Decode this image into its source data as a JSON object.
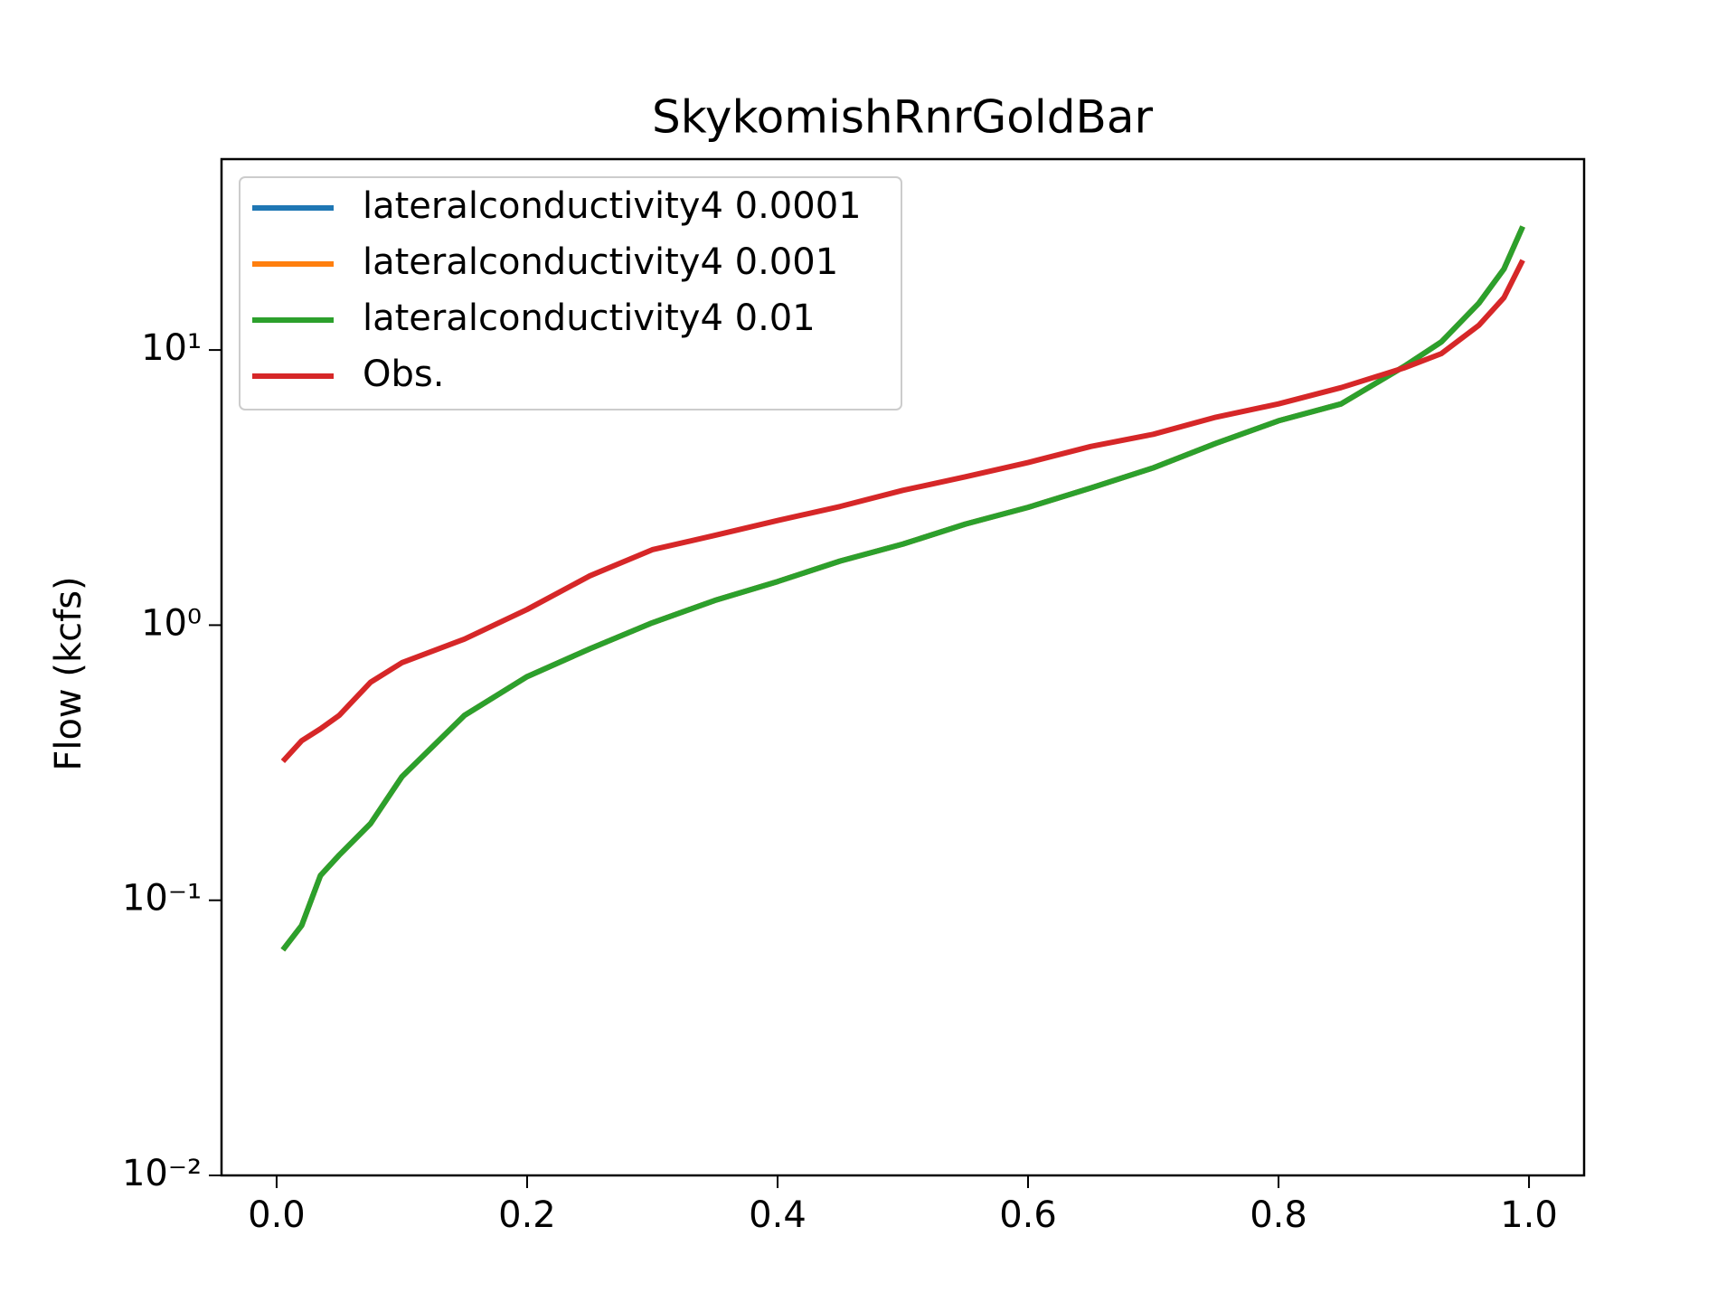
{
  "chart_data": {
    "type": "line",
    "title": "SkykomishRnrGoldBar",
    "ylabel": "Flow (kcfs)",
    "x": [
      0.005,
      0.02,
      0.035,
      0.05,
      0.075,
      0.1,
      0.15,
      0.2,
      0.25,
      0.3,
      0.35,
      0.4,
      0.45,
      0.5,
      0.55,
      0.6,
      0.65,
      0.7,
      0.75,
      0.8,
      0.85,
      0.9,
      0.93,
      0.96,
      0.98,
      0.995
    ],
    "series": [
      {
        "name": "lateralconductivity4 0.0001",
        "color": "#1f77b4",
        "values": [
          0.066,
          0.081,
          0.123,
          0.146,
          0.19,
          0.281,
          0.47,
          0.65,
          0.82,
          1.02,
          1.23,
          1.44,
          1.71,
          1.97,
          2.33,
          2.68,
          3.15,
          3.73,
          4.58,
          5.53,
          6.37,
          8.7,
          10.7,
          14.8,
          19.7,
          28.1
        ]
      },
      {
        "name": "lateralconductivity4 0.001",
        "color": "#ff7f0e",
        "values": [
          0.066,
          0.081,
          0.123,
          0.146,
          0.19,
          0.281,
          0.47,
          0.65,
          0.82,
          1.02,
          1.23,
          1.44,
          1.71,
          1.97,
          2.33,
          2.68,
          3.15,
          3.73,
          4.58,
          5.53,
          6.37,
          8.7,
          10.7,
          14.8,
          19.7,
          28.1
        ]
      },
      {
        "name": "lateralconductivity4 0.01",
        "color": "#2ca02c",
        "values": [
          0.066,
          0.081,
          0.123,
          0.146,
          0.19,
          0.281,
          0.47,
          0.65,
          0.82,
          1.02,
          1.23,
          1.44,
          1.71,
          1.97,
          2.33,
          2.68,
          3.15,
          3.73,
          4.58,
          5.53,
          6.37,
          8.7,
          10.7,
          14.8,
          19.7,
          28.1
        ]
      },
      {
        "name": "Obs.",
        "color": "#d62728",
        "values": [
          0.32,
          0.38,
          0.42,
          0.47,
          0.62,
          0.73,
          0.89,
          1.14,
          1.51,
          1.88,
          2.12,
          2.4,
          2.7,
          3.09,
          3.46,
          3.9,
          4.46,
          4.94,
          5.7,
          6.37,
          7.3,
          8.6,
          9.7,
          12.3,
          15.5,
          21.2
        ]
      }
    ],
    "xlim": [
      -0.044,
      1.044
    ],
    "xticks": [
      {
        "value": 0,
        "label": "0.0"
      },
      0.2,
      0.4,
      0.6,
      0.8,
      {
        "value": 1,
        "label": "1.0"
      }
    ],
    "ylim": [
      0.01,
      49.4
    ],
    "yticks": [
      {
        "value": 0.01,
        "label": "10⁻²"
      },
      {
        "value": 0.1,
        "label": "10⁻¹"
      },
      {
        "value": 1,
        "label": "10⁰"
      },
      {
        "value": 10,
        "label": "10¹"
      }
    ],
    "yscale": "log",
    "legend": "upper left"
  }
}
